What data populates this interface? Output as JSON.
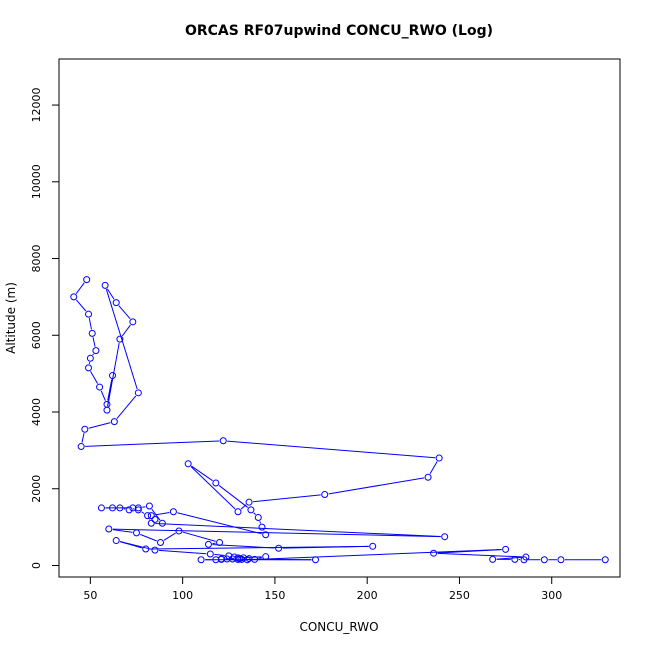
{
  "chart_data": {
    "type": "line",
    "title": "ORCAS RF07upwind CONCU_RWO (Log)",
    "xlabel": "CONCU_RWO",
    "ylabel": "Altitude (m)",
    "xlim": [
      33,
      337
    ],
    "ylim": [
      -300,
      13200
    ],
    "xticks": [
      50,
      100,
      150,
      200,
      250,
      300
    ],
    "yticks": [
      0,
      2000,
      4000,
      6000,
      8000,
      10000,
      12000
    ],
    "grid": false,
    "legend": "none",
    "line_color": "#0000ff",
    "marker": "open-circle",
    "series": [
      {
        "x": [
          48,
          41,
          49,
          51,
          53,
          50,
          49,
          55,
          59,
          62,
          59,
          66,
          73,
          64,
          58,
          76,
          63,
          47,
          45,
          122,
          239,
          233,
          177,
          136,
          130,
          103,
          118,
          137,
          141,
          143,
          145,
          95,
          83,
          85,
          89,
          82,
          76,
          71,
          66,
          62,
          56,
          73,
          76,
          81,
          83,
          242,
          60,
          75,
          88,
          98,
          120,
          114,
          152,
          203,
          80,
          64,
          85,
          115,
          125,
          128,
          133,
          131,
          136,
          139,
          145,
          130,
          124,
          121,
          118,
          110,
          172,
          130,
          121,
          127,
          130,
          132,
          135,
          275,
          236,
          286,
          268,
          280,
          285,
          296,
          305,
          329
        ],
        "y": [
          7450,
          7000,
          6550,
          6050,
          5600,
          5400,
          5150,
          4650,
          4200,
          4950,
          4050,
          5900,
          6350,
          6850,
          7300,
          4500,
          3750,
          3550,
          3100,
          3250,
          2800,
          2300,
          1850,
          1650,
          1400,
          2650,
          2150,
          1450,
          1250,
          1000,
          800,
          1400,
          1300,
          1200,
          1100,
          1550,
          1500,
          1450,
          1500,
          1500,
          1500,
          1500,
          1450,
          1300,
          1100,
          750,
          950,
          850,
          600,
          900,
          600,
          550,
          450,
          500,
          430,
          650,
          400,
          300,
          250,
          220,
          200,
          180,
          180,
          160,
          230,
          200,
          170,
          160,
          150,
          150,
          150,
          160,
          170,
          170,
          160,
          160,
          150,
          420,
          320,
          220,
          160,
          160,
          150,
          150,
          150,
          150
        ]
      }
    ]
  }
}
